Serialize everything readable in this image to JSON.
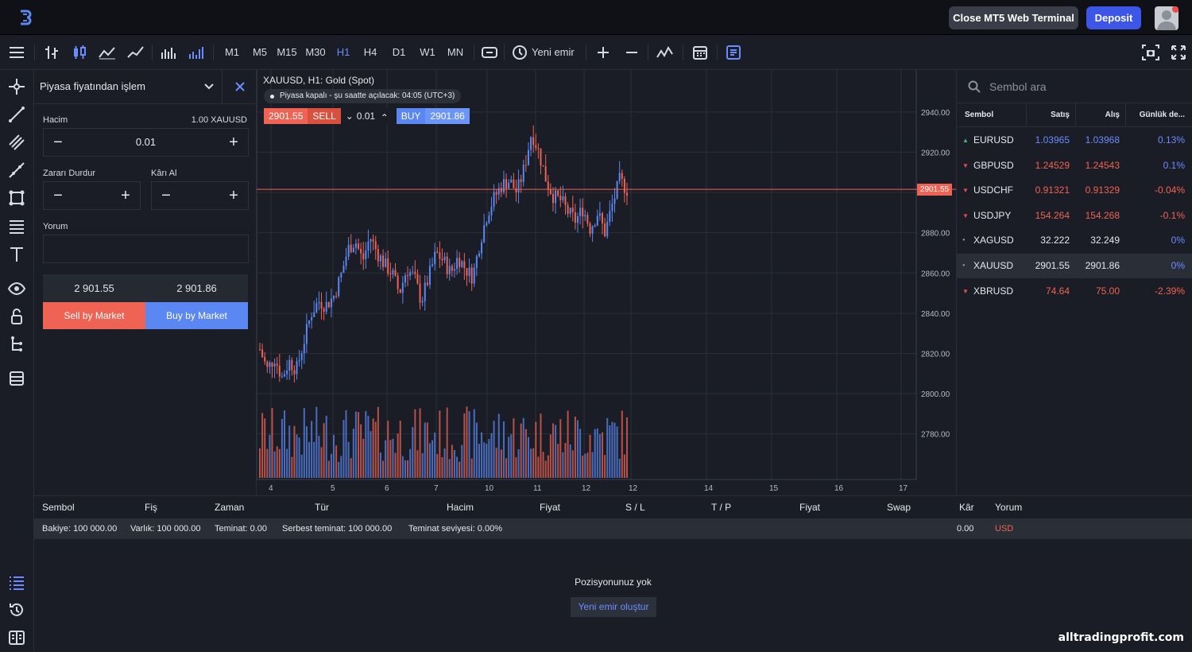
{
  "header": {
    "close_terminal": "Close MT5 Web Terminal",
    "deposit": "Deposit"
  },
  "toolbar": {
    "timeframes": [
      "M1",
      "M5",
      "M15",
      "M30",
      "H1",
      "H4",
      "D1",
      "W1",
      "MN"
    ],
    "active_timeframe": "H1",
    "new_order": "Yeni emir"
  },
  "order_panel": {
    "title": "Piyasa fiyatından işlem",
    "volume_label": "Hacim",
    "volume_unit": "1.00 XAUUSD",
    "volume_value": "0.01",
    "sl_label": "Zararı Durdur",
    "tp_label": "Kârı Al",
    "comment_label": "Yorum",
    "bid": "2 901.55",
    "ask": "2 901.86",
    "sell_button": "Sell by Market",
    "buy_button": "Buy by Market"
  },
  "chart": {
    "title": "XAUUSD, H1: Gold (Spot)",
    "market_notice": "Piyasa kapalı - şu saatte açılacak: 04:05 (UTC+3)",
    "sell_price": "2901.55",
    "sell_label": "SELL",
    "lot": "0.01",
    "buy_label": "BUY",
    "buy_price": "2901.86",
    "price_tag": "2901.55"
  },
  "chart_data": {
    "type": "candlestick",
    "symbol": "XAUUSD",
    "timeframe": "H1",
    "x_ticks": [
      "4",
      "5",
      "6",
      "7",
      "10",
      "11",
      "12",
      "12",
      "14",
      "15",
      "16",
      "17"
    ],
    "y_ticks": [
      2780.0,
      2800.0,
      2820.0,
      2840.0,
      2860.0,
      2880.0,
      2900.0,
      2920.0,
      2940.0
    ],
    "ylim": [
      2766,
      2955
    ],
    "current_price": 2901.55,
    "approx_close_path": [
      2822,
      2812,
      2818,
      2808,
      2816,
      2812,
      2826,
      2840,
      2846,
      2844,
      2848,
      2858,
      2872,
      2876,
      2866,
      2878,
      2870,
      2864,
      2860,
      2850,
      2862,
      2858,
      2846,
      2858,
      2870,
      2866,
      2860,
      2868,
      2862,
      2858,
      2876,
      2890,
      2898,
      2904,
      2906,
      2900,
      2912,
      2930,
      2920,
      2906,
      2898,
      2896,
      2890,
      2886,
      2892,
      2882,
      2890,
      2880,
      2894,
      2906,
      2901.55
    ]
  },
  "watchlist": {
    "search_placeholder": "Sembol ara",
    "columns": [
      "Sembol",
      "Satış",
      "Alış",
      "Günlük de..."
    ],
    "rows": [
      {
        "symbol": "EURUSD",
        "bid": "1.03965",
        "ask": "1.03968",
        "change": "0.13%",
        "dir": "up"
      },
      {
        "symbol": "GBPUSD",
        "bid": "1.24529",
        "ask": "1.24543",
        "change": "0.1%",
        "dir": "down"
      },
      {
        "symbol": "USDCHF",
        "bid": "0.91321",
        "ask": "0.91329",
        "change": "-0.04%",
        "dir": "down"
      },
      {
        "symbol": "USDJPY",
        "bid": "154.264",
        "ask": "154.268",
        "change": "-0.1%",
        "dir": "down"
      },
      {
        "symbol": "XAGUSD",
        "bid": "32.222",
        "ask": "32.249",
        "change": "0%",
        "dir": "flat"
      },
      {
        "symbol": "XAUUSD",
        "bid": "2901.55",
        "ask": "2901.86",
        "change": "0%",
        "dir": "flat"
      },
      {
        "symbol": "XBRUSD",
        "bid": "74.64",
        "ask": "75.00",
        "change": "-2.39%",
        "dir": "down"
      }
    ]
  },
  "bottom": {
    "columns": [
      "Sembol",
      "Fiş",
      "Zaman",
      "Tür",
      "Hacim",
      "Fiyat",
      "S / L",
      "T / P",
      "Fiyat",
      "Swap",
      "Kâr",
      "Yorum"
    ],
    "balance": "Bakiye: 100 000.00",
    "equity": "Varlık: 100 000.00",
    "margin": "Teminat: 0.00",
    "free_margin": "Serbest teminat: 100 000.00",
    "margin_level": "Teminat seviyesi: 0.00%",
    "profit": "0.00",
    "currency": "USD",
    "no_positions": "Pozisyonunuz yok",
    "create_order": "Yeni emir oluştur"
  },
  "watermark": "alltradingprofit.com",
  "colors": {
    "sell": "#ef6354",
    "buy": "#5a87f2",
    "accent": "#3e56e8",
    "bg": "#1a1d25"
  }
}
